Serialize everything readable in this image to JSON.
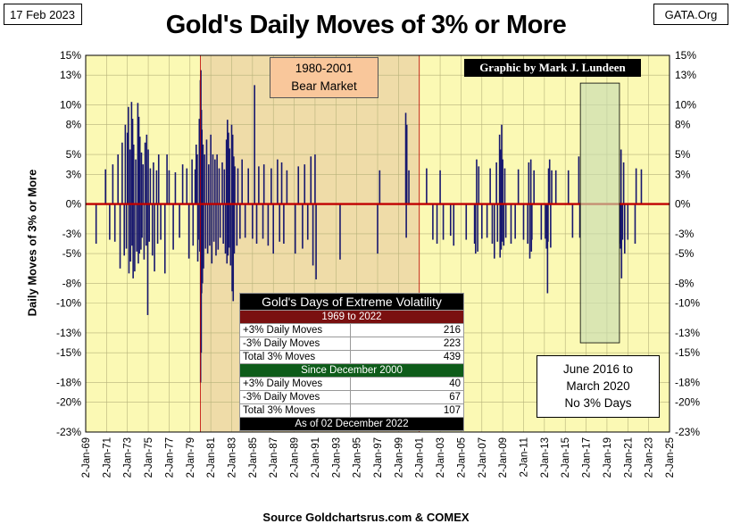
{
  "header": {
    "date": "17 Feb 2023",
    "title": "Gold's Daily Moves of 3% or More",
    "source": "GATA.Org",
    "credit": "Graphic by Mark J. Lundeen"
  },
  "annotations": {
    "bear_market": [
      "1980-2001",
      "Bear Market"
    ],
    "no_moves": [
      "June 2016 to",
      "March 2020",
      "No 3% Days"
    ]
  },
  "stats_table": {
    "title": "Gold's Days of Extreme Volatility",
    "section1": "1969 to 2022",
    "rows1": [
      {
        "label": "+3% Daily Moves",
        "value": "216"
      },
      {
        "label": "-3% Daily Moves",
        "value": "223"
      },
      {
        "label": "Total 3% Moves",
        "value": "439"
      }
    ],
    "section2": "Since December 2000",
    "rows2": [
      {
        "label": "+3% Daily Moves",
        "value": "40"
      },
      {
        "label": "-3% Daily Moves",
        "value": "67"
      },
      {
        "label": "Total 3% Moves",
        "value": "107"
      }
    ],
    "footer": "As of 02 December 2022"
  },
  "axes": {
    "ylabel": "Daily Moves  of  3%  or More",
    "xlabel": "Source Goldchartsrus.com & COMEX"
  },
  "colors": {
    "plot_background": "#fbf9b4",
    "bear_shade": "#efdca8",
    "bar": "#17176e",
    "zero_line": "#c00000",
    "no_move_shade": "#c8dcb0"
  },
  "chart_data": {
    "type": "bar",
    "ylim": [
      -23,
      15
    ],
    "y_ticks": [
      15,
      13,
      10,
      8,
      5,
      3,
      0,
      -3,
      -5,
      -8,
      -10,
      -13,
      -15,
      -18,
      -20,
      -23
    ],
    "y_tick_labels": [
      "15%",
      "13%",
      "10%",
      "8%",
      "5%",
      "3%",
      "0%",
      "-3%",
      "-5%",
      "-8%",
      "-10%",
      "-13%",
      "-15%",
      "-18%",
      "-20%",
      "-23%"
    ],
    "x_tick_labels": [
      "2-Jan-69",
      "2-Jan-71",
      "2-Jan-73",
      "2-Jan-75",
      "2-Jan-77",
      "2-Jan-79",
      "2-Jan-81",
      "2-Jan-83",
      "2-Jan-85",
      "2-Jan-87",
      "2-Jan-89",
      "2-Jan-91",
      "2-Jan-93",
      "2-Jan-95",
      "2-Jan-97",
      "2-Jan-99",
      "2-Jan-01",
      "2-Jan-03",
      "2-Jan-05",
      "2-Jan-07",
      "2-Jan-09",
      "2-Jan-11",
      "2-Jan-13",
      "2-Jan-15",
      "2-Jan-17",
      "2-Jan-19",
      "2-Jan-21",
      "2-Jan-23",
      "2-Jan-25"
    ],
    "xlim_years": [
      1969,
      2025
    ],
    "bear_market_years": [
      1980,
      2001
    ],
    "no_move_years": [
      2016.45,
      2020.2
    ],
    "grid": true,
    "moves": [
      [
        1970.0,
        -4.0
      ],
      [
        1970.9,
        3.5
      ],
      [
        1971.3,
        -3.6
      ],
      [
        1971.6,
        4.0
      ],
      [
        1971.8,
        -3.8
      ],
      [
        1972.1,
        5.0
      ],
      [
        1972.3,
        -6.5
      ],
      [
        1972.5,
        6.2
      ],
      [
        1972.7,
        -5.2
      ],
      [
        1972.8,
        8.0
      ],
      [
        1972.9,
        -4.5
      ],
      [
        1973.0,
        7.2
      ],
      [
        1973.1,
        9.8
      ],
      [
        1973.15,
        -7.0
      ],
      [
        1973.25,
        5.5
      ],
      [
        1973.3,
        -5.8
      ],
      [
        1973.4,
        10.3
      ],
      [
        1973.45,
        -4.2
      ],
      [
        1973.5,
        8.6
      ],
      [
        1973.55,
        -7.5
      ],
      [
        1973.6,
        6.0
      ],
      [
        1973.7,
        -6.8
      ],
      [
        1973.8,
        4.5
      ],
      [
        1973.9,
        -4.8
      ],
      [
        1974.0,
        10.2
      ],
      [
        1974.05,
        -6.0
      ],
      [
        1974.1,
        8.8
      ],
      [
        1974.15,
        -5.0
      ],
      [
        1974.2,
        6.8
      ],
      [
        1974.3,
        -4.6
      ],
      [
        1974.35,
        5.2
      ],
      [
        1974.4,
        -3.4
      ],
      [
        1974.5,
        4.0
      ],
      [
        1974.6,
        -5.6
      ],
      [
        1974.7,
        6.2
      ],
      [
        1974.8,
        -4.2
      ],
      [
        1974.85,
        7.0
      ],
      [
        1974.95,
        -11.2
      ],
      [
        1975.0,
        5.5
      ],
      [
        1975.1,
        -3.8
      ],
      [
        1975.2,
        3.6
      ],
      [
        1975.4,
        -5.2
      ],
      [
        1975.5,
        4.2
      ],
      [
        1975.6,
        -6.8
      ],
      [
        1975.8,
        3.4
      ],
      [
        1975.9,
        -4.0
      ],
      [
        1976.0,
        5.0
      ],
      [
        1976.2,
        -3.6
      ],
      [
        1976.6,
        -7.0
      ],
      [
        1976.8,
        5.0
      ],
      [
        1977.0,
        3.4
      ],
      [
        1977.4,
        -4.6
      ],
      [
        1977.6,
        3.2
      ],
      [
        1978.0,
        -3.4
      ],
      [
        1978.3,
        4.0
      ],
      [
        1978.7,
        3.6
      ],
      [
        1978.9,
        -5.5
      ],
      [
        1979.2,
        4.5
      ],
      [
        1979.3,
        -4.2
      ],
      [
        1979.5,
        3.5
      ],
      [
        1979.6,
        6.0
      ],
      [
        1979.7,
        5.0
      ],
      [
        1979.75,
        -5.8
      ],
      [
        1979.8,
        -3.6
      ],
      [
        1979.9,
        8.6
      ],
      [
        1979.95,
        -4.8
      ],
      [
        1980.0,
        12.5
      ],
      [
        1980.02,
        -18.0
      ],
      [
        1980.05,
        13.5
      ],
      [
        1980.08,
        -15.0
      ],
      [
        1980.1,
        9.5
      ],
      [
        1980.12,
        -9.0
      ],
      [
        1980.15,
        7.5
      ],
      [
        1980.2,
        -8.0
      ],
      [
        1980.25,
        6.0
      ],
      [
        1980.3,
        -6.5
      ],
      [
        1980.4,
        5.0
      ],
      [
        1980.5,
        -4.5
      ],
      [
        1980.6,
        6.5
      ],
      [
        1980.7,
        -5.0
      ],
      [
        1980.8,
        4.0
      ],
      [
        1980.9,
        -4.2
      ],
      [
        1981.0,
        7.0
      ],
      [
        1981.1,
        -6.0
      ],
      [
        1981.2,
        5.0
      ],
      [
        1981.3,
        -3.8
      ],
      [
        1981.4,
        4.5
      ],
      [
        1981.5,
        -5.2
      ],
      [
        1981.6,
        5.0
      ],
      [
        1981.7,
        -4.6
      ],
      [
        1981.8,
        3.6
      ],
      [
        1981.9,
        -3.4
      ],
      [
        1982.1,
        4.2
      ],
      [
        1982.2,
        -4.0
      ],
      [
        1982.3,
        3.5
      ],
      [
        1982.4,
        -5.0
      ],
      [
        1982.5,
        6.5
      ],
      [
        1982.55,
        -6.0
      ],
      [
        1982.6,
        8.5
      ],
      [
        1982.65,
        -5.2
      ],
      [
        1982.7,
        7.2
      ],
      [
        1982.75,
        -4.4
      ],
      [
        1982.8,
        5.6
      ],
      [
        1982.9,
        -6.2
      ],
      [
        1983.0,
        8.0
      ],
      [
        1983.05,
        -8.8
      ],
      [
        1983.1,
        7.0
      ],
      [
        1983.15,
        -9.8
      ],
      [
        1983.2,
        4.8
      ],
      [
        1983.25,
        -5.0
      ],
      [
        1983.3,
        3.8
      ],
      [
        1983.5,
        -4.2
      ],
      [
        1983.6,
        3.6
      ],
      [
        1983.8,
        -3.5
      ],
      [
        1984.0,
        4.5
      ],
      [
        1984.3,
        -3.4
      ],
      [
        1984.6,
        3.6
      ],
      [
        1985.0,
        -3.5
      ],
      [
        1985.2,
        12.0
      ],
      [
        1985.4,
        -4.0
      ],
      [
        1985.6,
        3.8
      ],
      [
        1986.0,
        -3.5
      ],
      [
        1986.1,
        4.0
      ],
      [
        1986.5,
        -4.2
      ],
      [
        1986.8,
        3.6
      ],
      [
        1987.0,
        -5.0
      ],
      [
        1987.4,
        4.5
      ],
      [
        1987.6,
        -3.8
      ],
      [
        1987.8,
        4.2
      ],
      [
        1988.0,
        -4.0
      ],
      [
        1988.3,
        3.4
      ],
      [
        1989.1,
        -5.0
      ],
      [
        1989.4,
        3.8
      ],
      [
        1989.8,
        -4.5
      ],
      [
        1990.0,
        4.0
      ],
      [
        1990.3,
        -3.6
      ],
      [
        1990.6,
        4.8
      ],
      [
        1990.8,
        -6.2
      ],
      [
        1991.0,
        5.0
      ],
      [
        1991.1,
        -7.6
      ],
      [
        1993.4,
        -5.6
      ],
      [
        1997.0,
        -5.0
      ],
      [
        1997.2,
        3.4
      ],
      [
        1999.7,
        9.2
      ],
      [
        1999.75,
        -3.4
      ],
      [
        1999.8,
        8.0
      ],
      [
        2000.0,
        3.4
      ],
      [
        2001.7,
        3.6
      ],
      [
        2002.3,
        -3.6
      ],
      [
        2002.7,
        -4.0
      ],
      [
        2003.0,
        3.4
      ],
      [
        2003.3,
        -3.6
      ],
      [
        2004.0,
        -3.2
      ],
      [
        2004.3,
        -4.2
      ],
      [
        2005.5,
        -3.6
      ],
      [
        2006.3,
        -4.0
      ],
      [
        2006.4,
        -5.0
      ],
      [
        2006.5,
        4.5
      ],
      [
        2006.6,
        -4.8
      ],
      [
        2006.7,
        3.8
      ],
      [
        2007.0,
        -3.5
      ],
      [
        2007.5,
        -3.4
      ],
      [
        2007.8,
        3.6
      ],
      [
        2008.0,
        -4.0
      ],
      [
        2008.2,
        -5.5
      ],
      [
        2008.4,
        4.2
      ],
      [
        2008.5,
        -3.8
      ],
      [
        2008.7,
        7.0
      ],
      [
        2008.75,
        -5.4
      ],
      [
        2008.8,
        5.5
      ],
      [
        2008.85,
        -4.6
      ],
      [
        2008.9,
        8.0
      ],
      [
        2008.95,
        -3.8
      ],
      [
        2009.0,
        4.5
      ],
      [
        2009.1,
        -4.2
      ],
      [
        2009.2,
        3.6
      ],
      [
        2009.3,
        -3.4
      ],
      [
        2009.8,
        -4.0
      ],
      [
        2010.2,
        -3.5
      ],
      [
        2010.5,
        3.5
      ],
      [
        2011.0,
        -3.6
      ],
      [
        2011.4,
        -4.0
      ],
      [
        2011.5,
        4.2
      ],
      [
        2011.6,
        -5.5
      ],
      [
        2011.7,
        4.5
      ],
      [
        2011.75,
        -4.8
      ],
      [
        2011.8,
        -3.6
      ],
      [
        2012.0,
        3.4
      ],
      [
        2012.7,
        -3.6
      ],
      [
        2013.1,
        -3.5
      ],
      [
        2013.2,
        -4.5
      ],
      [
        2013.3,
        -9.0
      ],
      [
        2013.35,
        -3.8
      ],
      [
        2013.4,
        3.6
      ],
      [
        2013.5,
        4.5
      ],
      [
        2013.6,
        -4.4
      ],
      [
        2013.7,
        3.4
      ],
      [
        2014.1,
        3.4
      ],
      [
        2015.3,
        3.4
      ],
      [
        2015.7,
        -3.4
      ],
      [
        2016.3,
        4.8
      ],
      [
        2016.4,
        -3.4
      ],
      [
        2020.25,
        -4.0
      ],
      [
        2020.3,
        -4.5
      ],
      [
        2020.35,
        5.5
      ],
      [
        2020.4,
        -7.5
      ],
      [
        2020.5,
        -3.6
      ],
      [
        2020.6,
        4.2
      ],
      [
        2020.7,
        -5.0
      ],
      [
        2021.0,
        -3.6
      ],
      [
        2021.7,
        -4.0
      ],
      [
        2021.8,
        3.6
      ],
      [
        2022.3,
        3.5
      ]
    ]
  }
}
